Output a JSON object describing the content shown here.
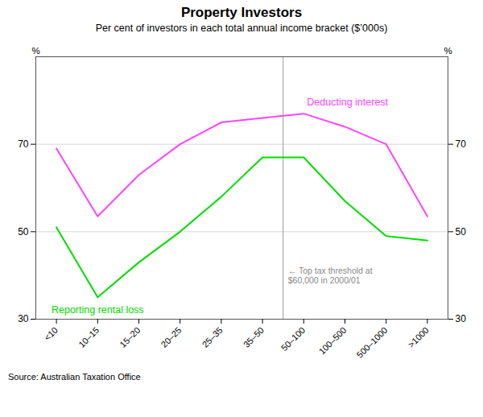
{
  "chart_data": {
    "type": "line",
    "title": "Property Investors",
    "subtitle": "Per cent of investors in each total annual income bracket ($’000s)",
    "source": "Source: Australian Taxation Office",
    "categories": [
      "<10",
      "10–15",
      "15–20",
      "20–25",
      "25–35",
      "35–50",
      "50–100",
      "100–500",
      "500–1000",
      ">1000"
    ],
    "series": [
      {
        "name": "Deducting interest",
        "color": "#ff44ff",
        "values": [
          69,
          53.5,
          63,
          70,
          75,
          76,
          77,
          74,
          70,
          53.5
        ]
      },
      {
        "name": "Reporting rental loss",
        "color": "#00dd00",
        "values": [
          51,
          35,
          43,
          50,
          58,
          67,
          67,
          57,
          49,
          48
        ]
      }
    ],
    "ylim": [
      30,
      90
    ],
    "yticks": [
      30,
      50,
      70
    ],
    "y2lim": [
      30,
      90
    ],
    "y2ticks": [
      30,
      50,
      70
    ],
    "ylabel": "%",
    "y2label": "%",
    "grid": true,
    "reference_line": {
      "between": [
        "35–50",
        "50–100"
      ]
    },
    "annotations": [
      {
        "text": "← Top tax threshold at\n$60,000 in 2000/01",
        "y": 40
      }
    ]
  }
}
